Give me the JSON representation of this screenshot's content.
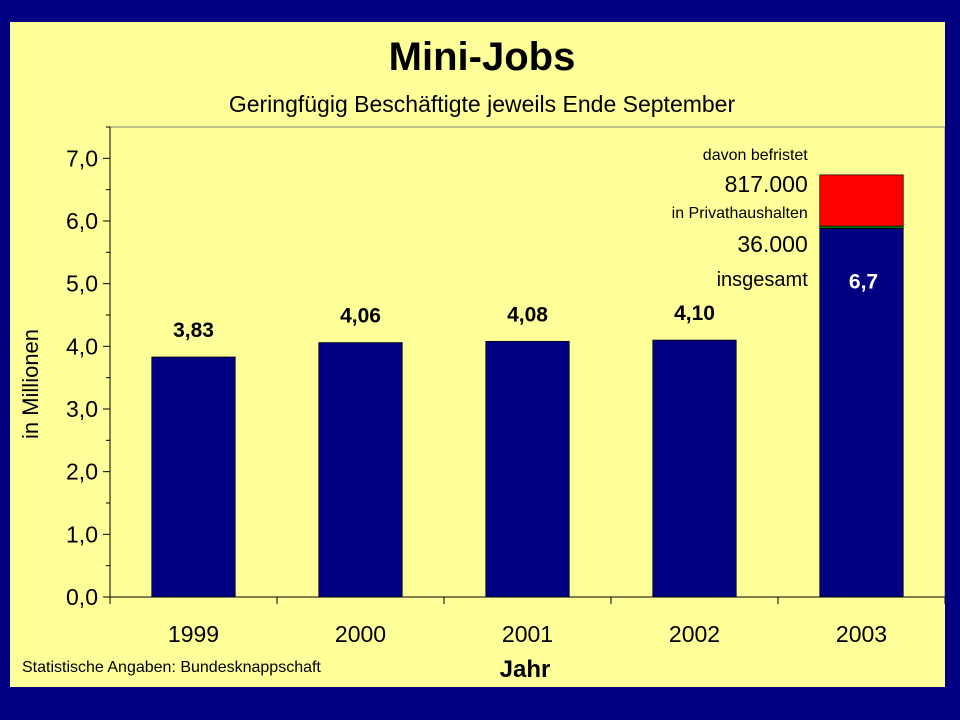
{
  "chart_data": {
    "type": "bar",
    "title": "Mini-Jobs",
    "subtitle": "Geringfügig Beschäftigte jeweils Ende September",
    "xlabel": "Jahr",
    "ylabel": "in Millionen",
    "categories": [
      "1999",
      "2000",
      "2001",
      "2002",
      "2003"
    ],
    "values": [
      3.83,
      4.06,
      4.08,
      4.1,
      6.7
    ],
    "value_labels": [
      "3,83",
      "4,06",
      "4,08",
      "4,10",
      "6,7"
    ],
    "ylim": [
      0,
      7.5
    ],
    "yticks": [
      0,
      1,
      2,
      3,
      4,
      5,
      6,
      7
    ],
    "ytick_labels": [
      "0,0",
      "1,0",
      "2,0",
      "3,0",
      "4,0",
      "5,0",
      "6,0",
      "7,0"
    ],
    "grid": false,
    "stacked_2003": {
      "segments": [
        {
          "value": 5.883,
          "color": "#000080"
        },
        {
          "value": 0.036,
          "color": "#008000"
        },
        {
          "value": 0.817,
          "color": "#FF0000"
        }
      ]
    },
    "annotations": [
      {
        "text": "davon befristet"
      },
      {
        "text": "817.000"
      },
      {
        "text": "in Privathaushalten"
      },
      {
        "text": "36.000"
      },
      {
        "text": "insgesamt"
      }
    ],
    "source": "Statistische Angaben: Bundesknappschaft",
    "colors": {
      "background": "#FFFF99",
      "frame": "#000080",
      "bar": "#000080",
      "highlight": "#FF0000"
    }
  }
}
